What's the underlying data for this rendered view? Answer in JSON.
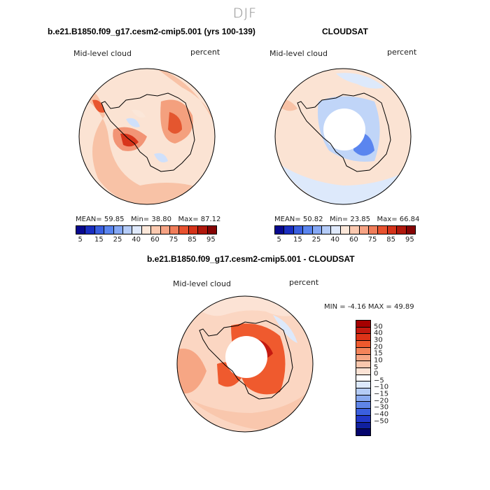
{
  "season": "DJF",
  "panels": [
    {
      "title": "b.e21.B1850.f09_g17.cesm2-cmip5.001 (yrs 100-139)",
      "variable": "Mid-level cloud",
      "units": "percent",
      "stats": {
        "mean_label": "MEAN=",
        "mean": "59.85",
        "min_label": "Min=",
        "min": "38.80",
        "max_label": "Max=",
        "max": "87.12"
      }
    },
    {
      "title": "CLOUDSAT",
      "variable": "Mid-level cloud",
      "units": "percent",
      "stats": {
        "mean_label": "MEAN=",
        "mean": "50.82",
        "min_label": "Min=",
        "min": "23.85",
        "max_label": "Max=",
        "max": "66.84"
      }
    }
  ],
  "diff": {
    "title": "b.e21.B1850.f09_g17.cesm2-cmip5.001 - CLOUDSAT",
    "variable": "Mid-level cloud",
    "units": "percent",
    "stats": {
      "min_label": "MIN =",
      "min": "-4.16",
      "max_label": "MAX =",
      "max": "49.89"
    }
  },
  "colorbar_abs": {
    "colors": [
      "#08088e",
      "#1a2ec0",
      "#3a5fe0",
      "#5a85ef",
      "#85a8f5",
      "#b5ccf8",
      "#dfe9fb",
      "#fbe7d9",
      "#fbc9b0",
      "#f6a384",
      "#f07d5a",
      "#e8522f",
      "#d5331a",
      "#b0180c",
      "#850404"
    ],
    "tick_labels": [
      "5",
      "15",
      "25",
      "40",
      "60",
      "75",
      "85",
      "95"
    ]
  },
  "colorbar_diff": {
    "colors_top_to_bottom": [
      "#a50000",
      "#c41a10",
      "#de3318",
      "#ef5a2e",
      "#f4845a",
      "#f6a684",
      "#f9c7ad",
      "#fce3d5",
      "#ffffff",
      "#dde9fb",
      "#b5ccf6",
      "#8aaaf0",
      "#5f85e8",
      "#3b5fdf",
      "#2238c8",
      "#10209f",
      "#05056d"
    ],
    "tick_labels": [
      "50",
      "40",
      "30",
      "20",
      "15",
      "10",
      "5",
      "0",
      "−5",
      "−10",
      "−15",
      "−20",
      "−30",
      "−40",
      "−50"
    ]
  }
}
